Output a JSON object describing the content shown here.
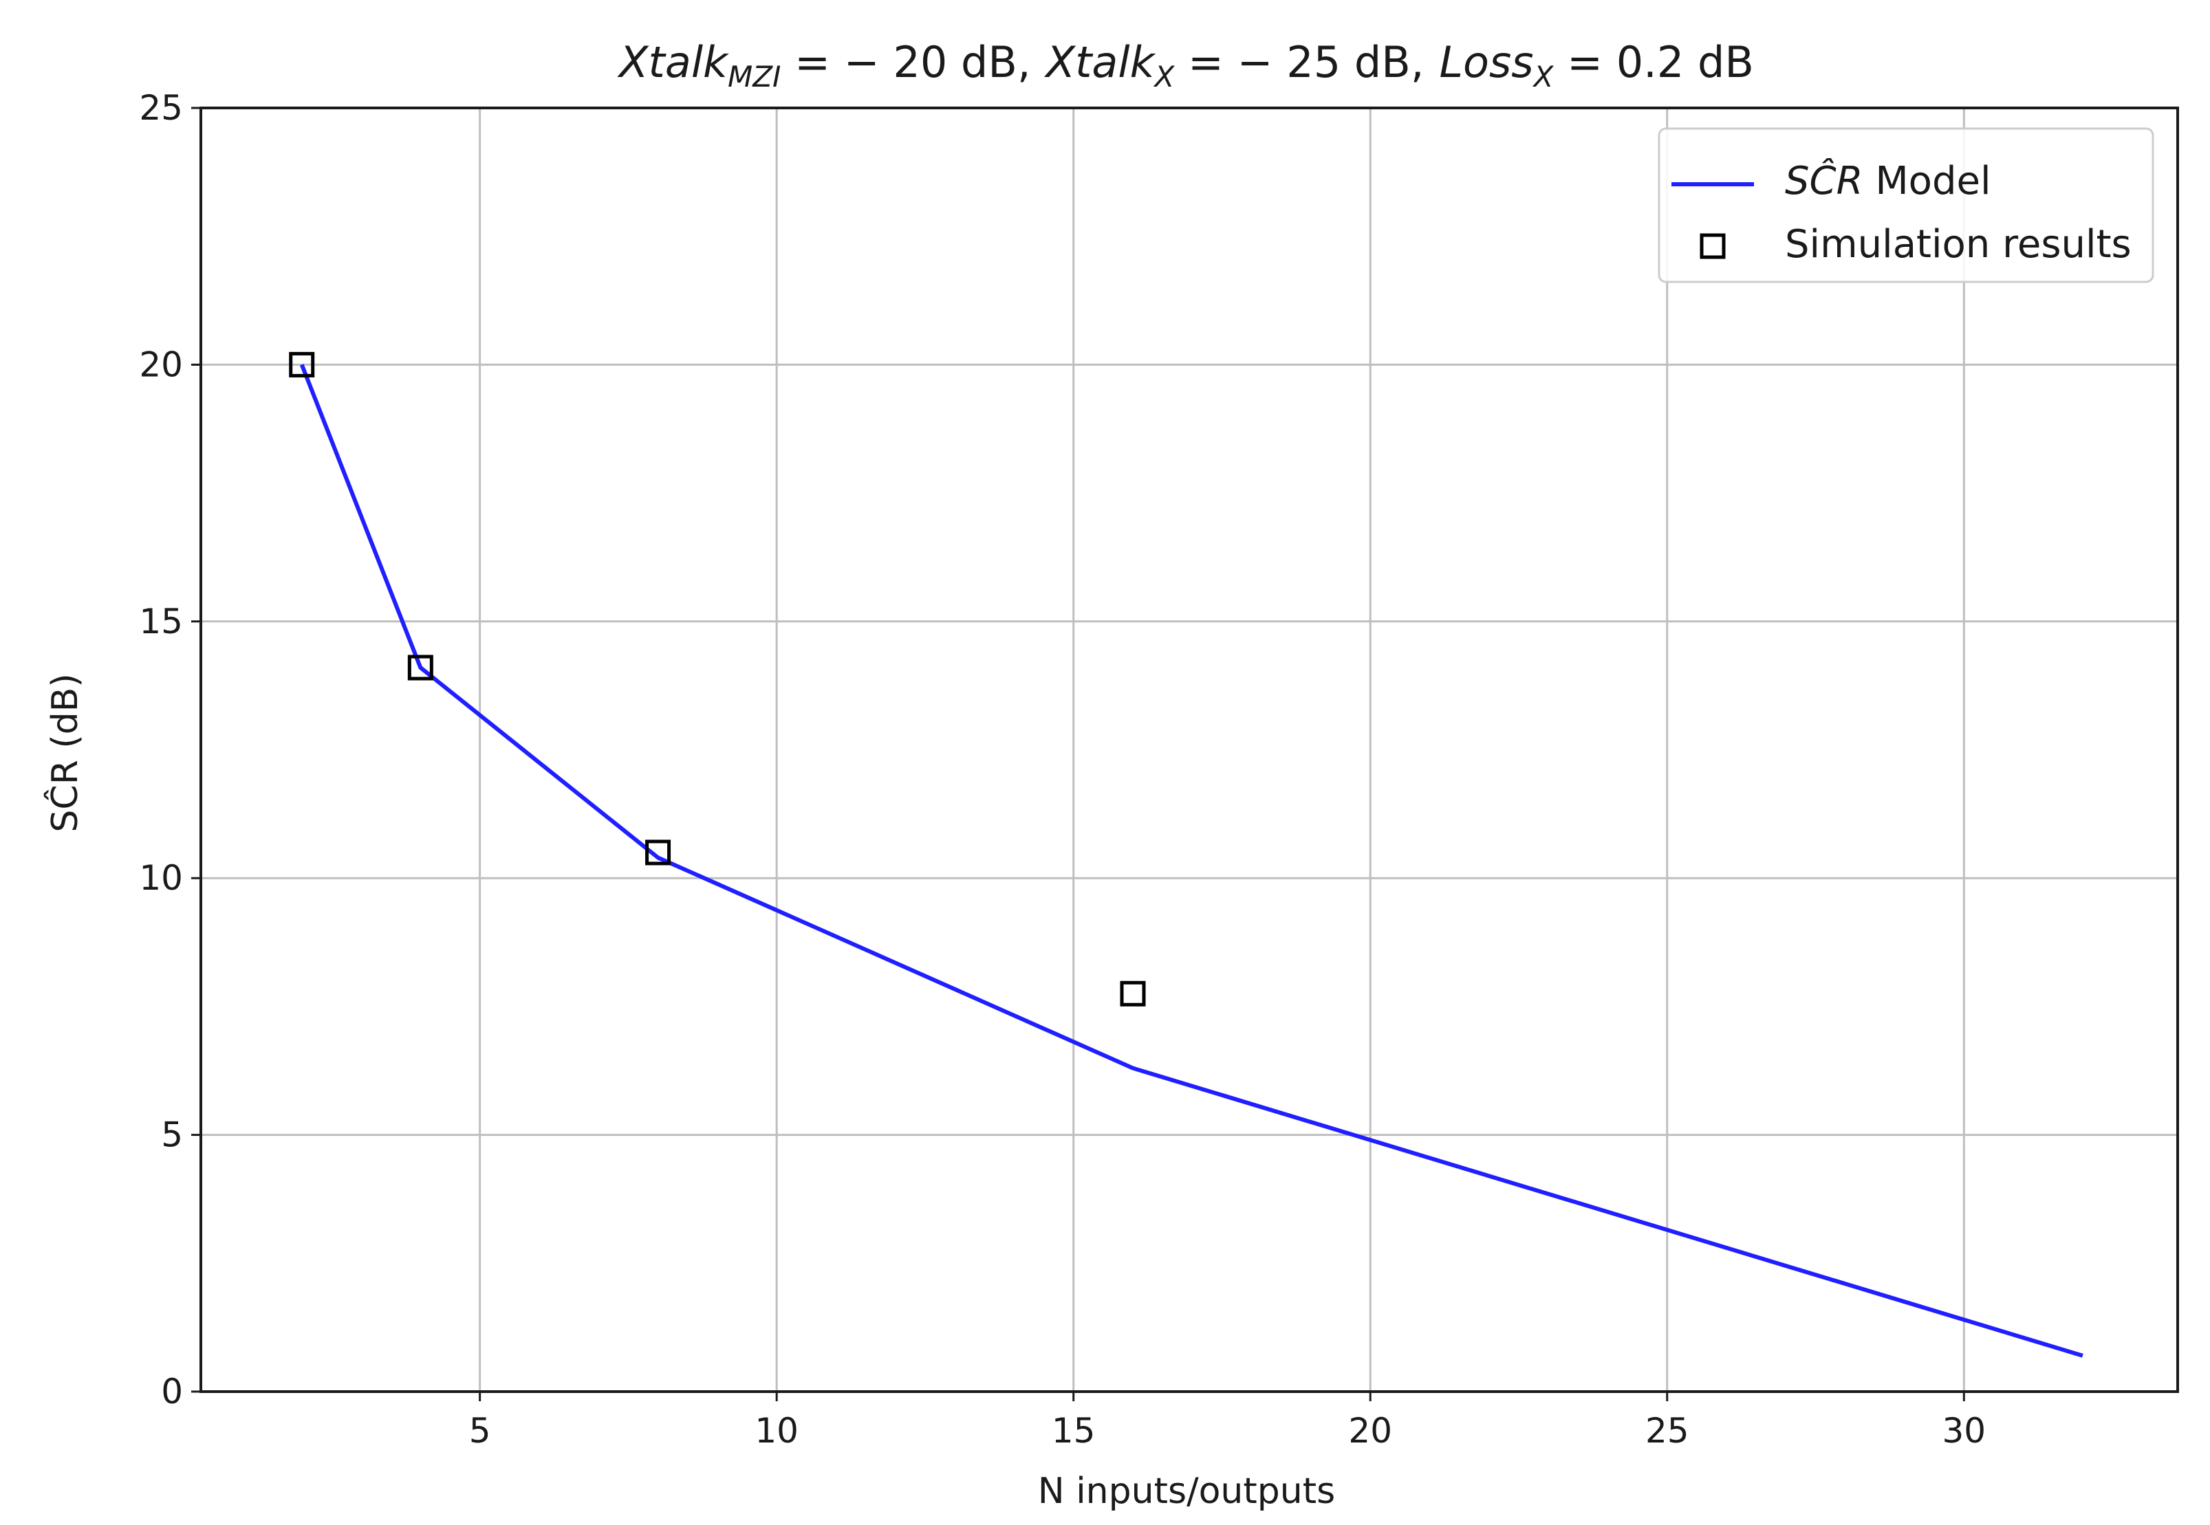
{
  "chart_data": {
    "type": "line",
    "title": {
      "part1_var": "Xtalk",
      "part1_sub": "MZI",
      "part1_val": " = − 20 dB,",
      "part2_var": "Xtalk",
      "part2_sub": "X",
      "part2_val": " = − 25 dB,",
      "part3_var": "Loss",
      "part3_sub": "X",
      "part3_val": " = 0.2 dB"
    },
    "xlabel": "N inputs/outputs",
    "ylabel": "SĈR (dB)",
    "xlim": [
      0.3,
      33.6
    ],
    "ylim": [
      0,
      25
    ],
    "xticks": [
      5,
      10,
      15,
      20,
      25,
      30
    ],
    "yticks": [
      0,
      5,
      10,
      15,
      20,
      25
    ],
    "grid": true,
    "legend_position": "top-right",
    "series": [
      {
        "name": "SĈR Model",
        "legend_math": "SĈR",
        "legend_rest": " Model",
        "kind": "line",
        "color": "#1f1fff",
        "x": [
          2,
          4,
          8,
          16,
          32
        ],
        "y": [
          20.0,
          14.1,
          10.4,
          6.3,
          0.7
        ]
      },
      {
        "name": "Simulation results",
        "kind": "marker",
        "marker": "square",
        "color": "#000000",
        "x": [
          2,
          4,
          8,
          16
        ],
        "y": [
          20.0,
          14.1,
          10.5,
          7.75
        ]
      }
    ]
  }
}
